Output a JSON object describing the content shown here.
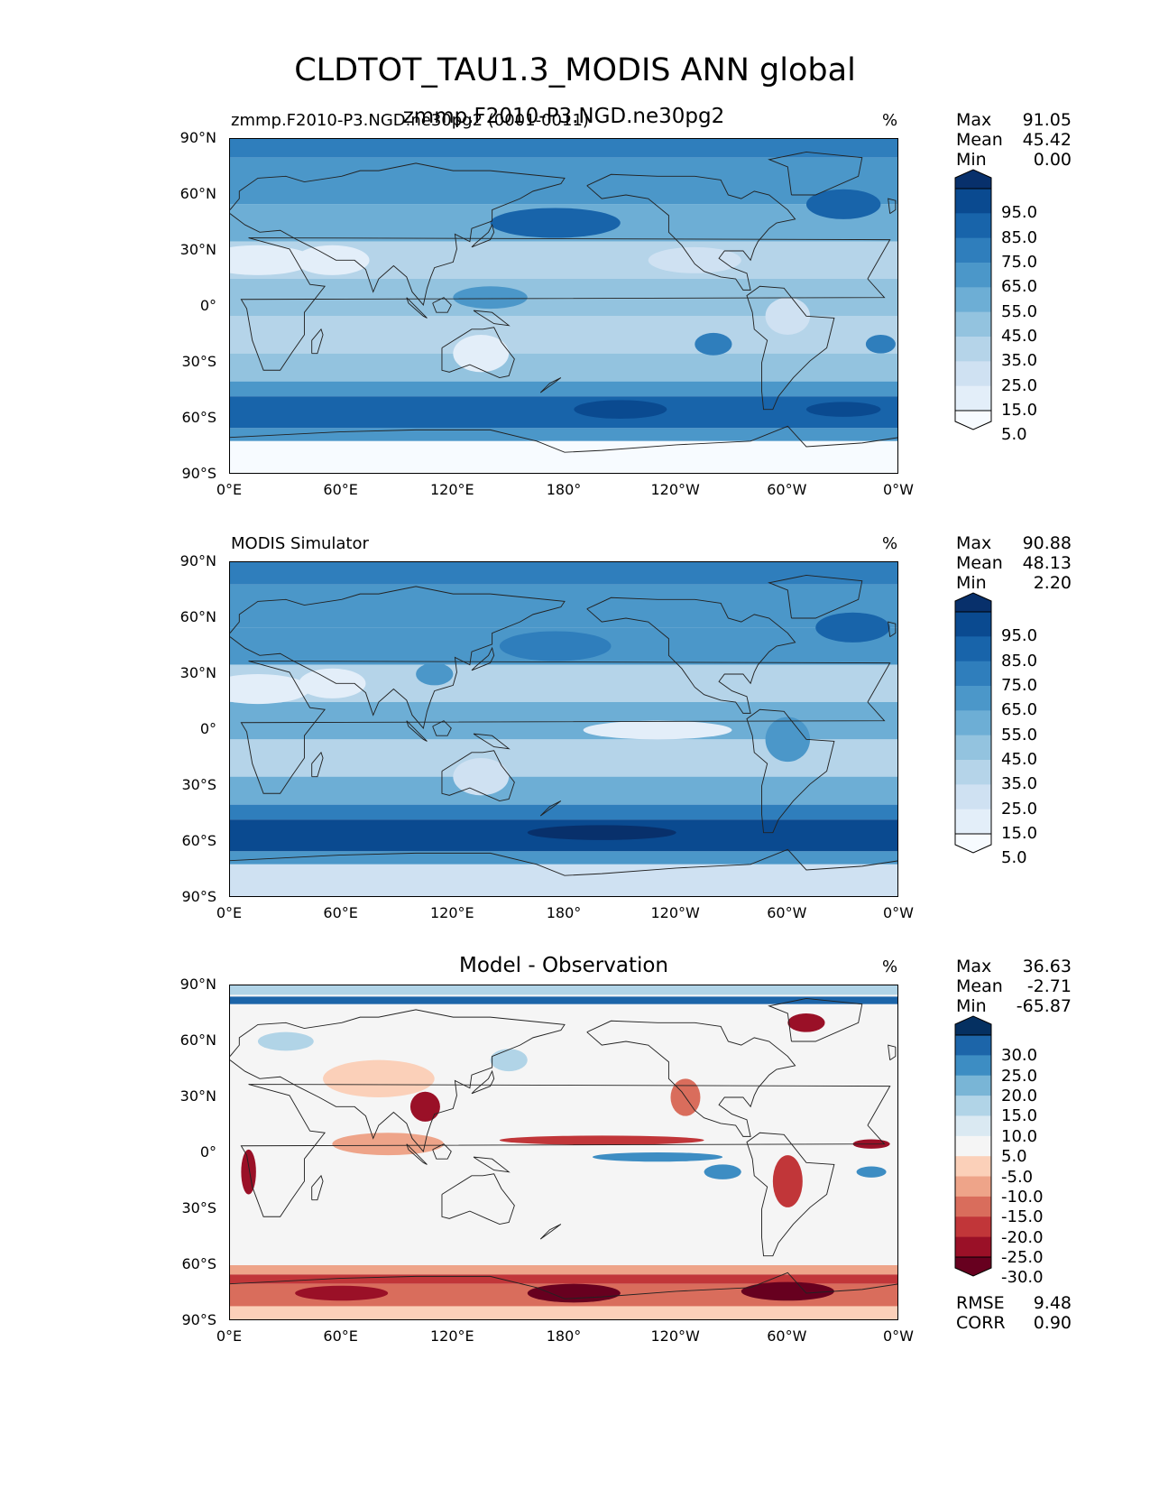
{
  "figure": {
    "title": "CLDTOT_TAU1.3_MODIS ANN global",
    "overlap_title": "zmmp.F2010-P3.NGD.ne30pg2"
  },
  "axes": {
    "lat_ticks": [
      "90°N",
      "60°N",
      "30°N",
      "0°",
      "30°S",
      "60°S",
      "90°S"
    ],
    "lon_ticks": [
      "0°E",
      "60°E",
      "120°E",
      "180°",
      "120°W",
      "60°W",
      "0°W"
    ]
  },
  "panels": [
    {
      "left_title": "zmmp.F2010-P3.NGD.ne30pg2 (0001-0011)",
      "center_title": "",
      "unit": "%",
      "stats": [
        {
          "label": "Max",
          "value": "91.05"
        },
        {
          "label": "Mean",
          "value": "45.42"
        },
        {
          "label": "Min",
          "value": "0.00"
        }
      ],
      "colorbar_ticks": [
        "95.0",
        "85.0",
        "75.0",
        "65.0",
        "55.0",
        "45.0",
        "35.0",
        "25.0",
        "15.0",
        "5.0"
      ]
    },
    {
      "left_title": "MODIS Simulator",
      "center_title": "",
      "unit": "%",
      "stats": [
        {
          "label": "Max",
          "value": "90.88"
        },
        {
          "label": "Mean",
          "value": "48.13"
        },
        {
          "label": "Min",
          "value": "2.20"
        }
      ],
      "colorbar_ticks": [
        "95.0",
        "85.0",
        "75.0",
        "65.0",
        "55.0",
        "45.0",
        "35.0",
        "25.0",
        "15.0",
        "5.0"
      ]
    },
    {
      "left_title": "",
      "center_title": "Model - Observation",
      "unit": "%",
      "stats": [
        {
          "label": "Max",
          "value": "36.63"
        },
        {
          "label": "Mean",
          "value": "-2.71"
        },
        {
          "label": "Min",
          "value": "-65.87"
        }
      ],
      "colorbar_ticks": [
        "30.0",
        "25.0",
        "20.0",
        "15.0",
        "10.0",
        "5.0",
        "-5.0",
        "-10.0",
        "-15.0",
        "-20.0",
        "-25.0",
        "-30.0"
      ],
      "bottom_stats": [
        {
          "label": "RMSE",
          "value": "9.48"
        },
        {
          "label": "CORR",
          "value": "0.90"
        }
      ]
    }
  ],
  "colors": {
    "blues": [
      "#f7fbff",
      "#e3eef9",
      "#cfe1f2",
      "#b5d4e9",
      "#93c3df",
      "#6daed5",
      "#4b97c9",
      "#2f7ebc",
      "#1864aa",
      "#0a4a90",
      "#08306b"
    ],
    "diverging": [
      "#67001f",
      "#9a1027",
      "#c13639",
      "#d96d5c",
      "#eea489",
      "#fbd0b9",
      "#f5f5f5",
      "#dae9f2",
      "#b1d4e7",
      "#79b5d6",
      "#3d8dc3",
      "#1c65a9",
      "#053061"
    ]
  }
}
